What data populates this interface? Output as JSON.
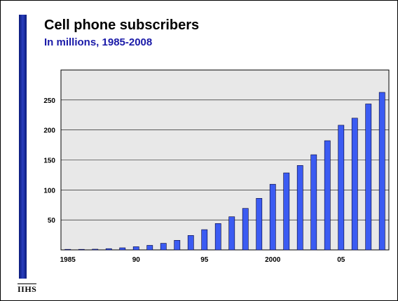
{
  "header": {
    "title": "Cell phone subscribers",
    "subtitle": "In millions, 1985-2008"
  },
  "logo": {
    "text": "IIHS"
  },
  "colors": {
    "bar_fill": "#3b5bf2",
    "bar_stroke": "#000033",
    "plot_bg": "#e8e8e8",
    "sidebar": "#1f2fa0",
    "subtitle": "#1a1aa8"
  },
  "chart_data": {
    "type": "bar",
    "title": "Cell phone subscribers",
    "subtitle": "In millions, 1985-2008",
    "xlabel": "",
    "ylabel": "",
    "categories": [
      "1985",
      "1986",
      "1987",
      "1988",
      "1989",
      "1990",
      "1991",
      "1992",
      "1993",
      "1994",
      "1995",
      "1996",
      "1997",
      "1998",
      "1999",
      "2000",
      "2001",
      "2002",
      "2003",
      "2004",
      "2005",
      "2006",
      "2007",
      "2008"
    ],
    "values": [
      0.3,
      0.7,
      1.2,
      2.1,
      3.5,
      5.3,
      7.6,
      11.0,
      16.0,
      24.1,
      33.8,
      44.0,
      55.3,
      69.2,
      86.0,
      109.5,
      128.4,
      140.8,
      158.7,
      182.1,
      207.9,
      219.7,
      243.4,
      262.7
    ],
    "x_tick_labels": [
      {
        "category": "1985",
        "label": "1985"
      },
      {
        "category": "1990",
        "label": "90"
      },
      {
        "category": "1995",
        "label": "95"
      },
      {
        "category": "2000",
        "label": "2000"
      },
      {
        "category": "2005",
        "label": "05"
      }
    ],
    "y_ticks": [
      50,
      100,
      150,
      200,
      250
    ],
    "ylim": [
      0,
      300
    ],
    "grid": true,
    "legend": "none"
  }
}
